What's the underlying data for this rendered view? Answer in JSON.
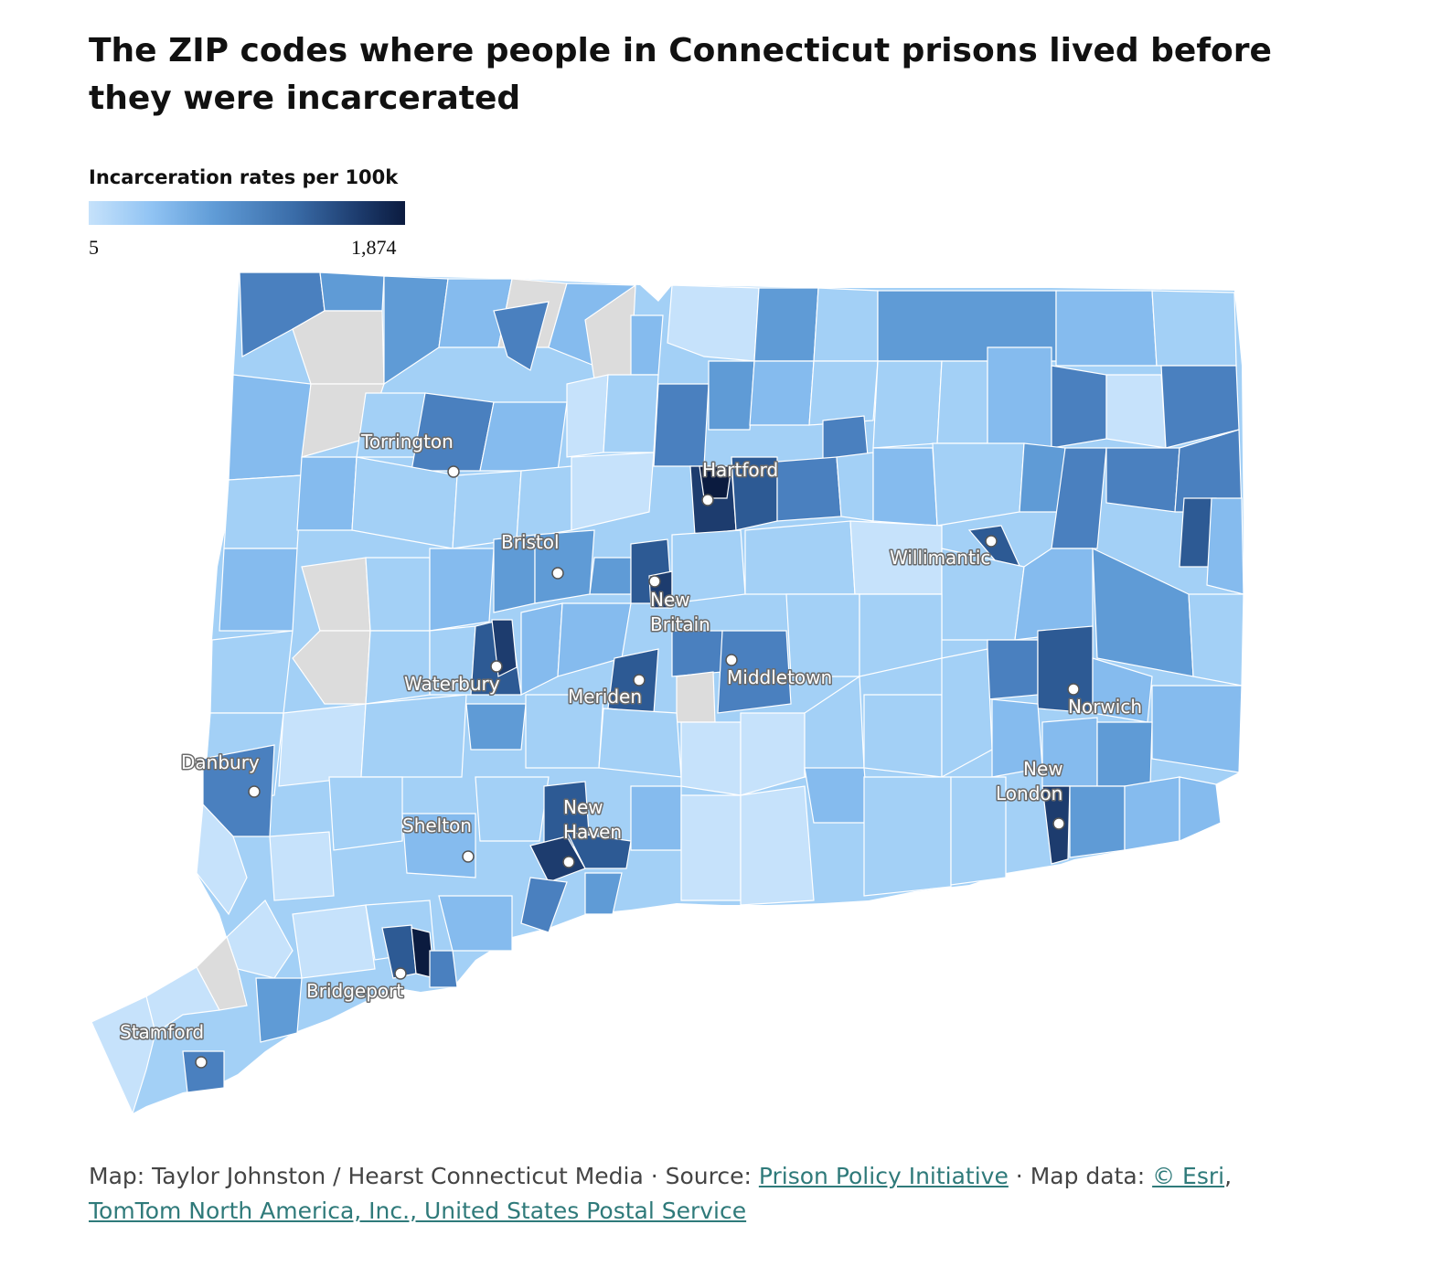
{
  "title": "The ZIP codes where people in Connecticut prisons lived before they were incarcerated",
  "legend": {
    "title": "Incarceration rates per 100k",
    "min": "5",
    "max": "1,874",
    "colors": [
      "#c6e2fb",
      "#90c3f3",
      "#5f9bd6",
      "#3a6ca8",
      "#1d3c6e",
      "#0b1b3f"
    ]
  },
  "cities": [
    {
      "name": "Torrington",
      "label": "Torrington"
    },
    {
      "name": "Hartford",
      "label": "Hartford"
    },
    {
      "name": "Bristol",
      "label": "Bristol"
    },
    {
      "name": "New Britain",
      "label1": "New",
      "label2": "Britain"
    },
    {
      "name": "Willimantic",
      "label": "Willimantic"
    },
    {
      "name": "Waterbury",
      "label": "Waterbury"
    },
    {
      "name": "Meriden",
      "label": "Meriden"
    },
    {
      "name": "Middletown",
      "label": "Middletown"
    },
    {
      "name": "Norwich",
      "label": "Norwich"
    },
    {
      "name": "Danbury",
      "label": "Danbury"
    },
    {
      "name": "New London",
      "label1": "New",
      "label2": "London"
    },
    {
      "name": "New Haven",
      "label1": "New",
      "label2": "Haven"
    },
    {
      "name": "Shelton",
      "label": "Shelton"
    },
    {
      "name": "Bridgeport",
      "label": "Bridgeport"
    },
    {
      "name": "Stamford",
      "label": "Stamford"
    }
  ],
  "credits": {
    "prefix": "Map: Taylor Johnston / Hearst Connecticut Media · Source: ",
    "source_link": "Prison Policy Initiative",
    "mid": " · Map data: ",
    "esri_link": "© Esri",
    "comma": ",",
    "tomtom_link": "TomTom North America, Inc., United States Postal Service"
  },
  "colors": {
    "no_data": "#dcdcdc",
    "lightest": "#c6e2fb",
    "light": "#a3d0f6",
    "mid_light": "#85bbee",
    "mid": "#5f9bd6",
    "mid_dark": "#4a80bf",
    "dark": "#2d5a94",
    "darker": "#1d3c6e",
    "darkest": "#0b1b3f"
  }
}
